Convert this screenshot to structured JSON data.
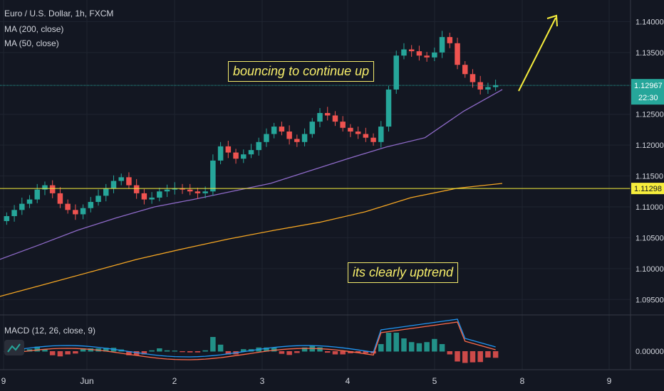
{
  "chart_data": {
    "type": "candlestick",
    "title": "Euro / U.S. Dollar, 1h, FXCM",
    "indicators": [
      "MA (200, close)",
      "MA (50, close)"
    ],
    "macd_label": "MACD (12, 26, close, 9)",
    "x_ticks": [
      "9",
      "Jun",
      "2",
      "3",
      "4",
      "5",
      "8",
      "9"
    ],
    "price_ticks": [
      "1.14000",
      "1.13500",
      "1.12500",
      "1.12000",
      "1.11500",
      "1.11000",
      "1.10500",
      "1.10000",
      "1.09500"
    ],
    "macd_tick": "0.00000",
    "ylim": [
      1.0925,
      1.1435
    ],
    "current_price": {
      "value": 1.12967,
      "label": "1.12967",
      "countdown": "22:30",
      "color": "#26a69a"
    },
    "horizontal_line": {
      "value": 1.11298,
      "label": "1.11298",
      "color": "#f7ee3c"
    },
    "ma200": {
      "color": "#f5a623",
      "values": [
        1.0955,
        1.0975,
        1.0995,
        1.1015,
        1.1032,
        1.1048,
        1.1062,
        1.1075,
        1.1092,
        1.1115,
        1.113,
        1.1138
      ]
    },
    "ma50": {
      "color": "#8e6ac8",
      "values": [
        1.1015,
        1.1038,
        1.1062,
        1.1082,
        1.11,
        1.1112,
        1.1125,
        1.1138,
        1.1158,
        1.1178,
        1.1197,
        1.1212,
        1.1255,
        1.129
      ]
    },
    "close_series": [
      1.1085,
      1.1095,
      1.1105,
      1.1112,
      1.1128,
      1.1135,
      1.1122,
      1.1105,
      1.1095,
      1.1088,
      1.1098,
      1.1108,
      1.1118,
      1.113,
      1.1142,
      1.1148,
      1.1135,
      1.1122,
      1.1112,
      1.1115,
      1.1125,
      1.1128,
      1.113,
      1.1128,
      1.1125,
      1.1122,
      1.1125,
      1.1175,
      1.1198,
      1.1188,
      1.1178,
      1.1185,
      1.1192,
      1.1205,
      1.1218,
      1.123,
      1.1222,
      1.121,
      1.1205,
      1.1218,
      1.1238,
      1.1252,
      1.1248,
      1.1238,
      1.1228,
      1.1222,
      1.1218,
      1.1212,
      1.1205,
      1.123,
      1.129,
      1.1345,
      1.1355,
      1.1352,
      1.1345,
      1.1342,
      1.135,
      1.1375,
      1.1365,
      1.133,
      1.1315,
      1.1302,
      1.129,
      1.1294,
      1.1297
    ],
    "annotations": [
      "bouncing to continue up",
      "its clearly uptrend"
    ],
    "colors": {
      "up": "#26a69a",
      "down": "#ef5350",
      "arrow": "#f7ee3c",
      "macd_line": "#2196f3",
      "signal_line": "#ff6b4a"
    }
  }
}
